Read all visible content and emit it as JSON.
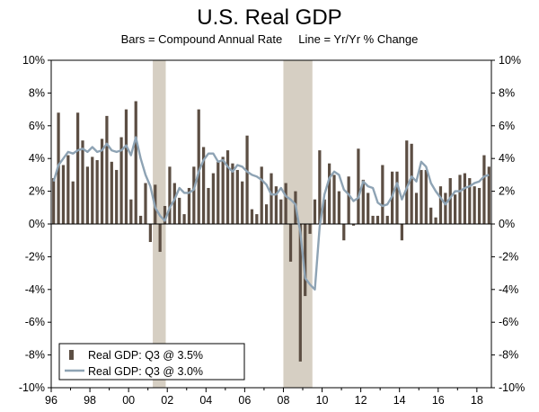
{
  "chart_data": {
    "type": "bar",
    "title": "U.S. Real GDP",
    "subtitle": "Bars = Compound Annual Rate     Line = Yr/Yr % Change",
    "ylim": [
      -10,
      10
    ],
    "yticks": [
      -10,
      -8,
      -6,
      -4,
      -2,
      0,
      2,
      4,
      6,
      8,
      10
    ],
    "ytick_suffix": "%",
    "x_range": [
      1996,
      2018.75
    ],
    "xtick_years": [
      1996,
      1998,
      2000,
      2002,
      2004,
      2006,
      2008,
      2010,
      2012,
      2014,
      2016,
      2018
    ],
    "xtick_labels": [
      "96",
      "98",
      "00",
      "02",
      "04",
      "06",
      "08",
      "10",
      "12",
      "14",
      "16",
      "18"
    ],
    "recessions": [
      [
        2001.25,
        2001.92
      ],
      [
        2008.0,
        2009.5
      ]
    ],
    "colors": {
      "bars": "#5c4e43",
      "line": "#8ea3b4",
      "recession": "#d6cfc3",
      "zero_line": "#000000"
    },
    "legend": [
      {
        "kind": "bar",
        "label": "Real GDP: Q3 @ 3.5%"
      },
      {
        "kind": "line",
        "label": "Real GDP: Q3 @ 3.0%"
      }
    ],
    "series": [
      {
        "name": "Real GDP: Q3 @ 3.5%",
        "kind": "bar",
        "x": [
          1996.0,
          1996.25,
          1996.5,
          1996.75,
          1997.0,
          1997.25,
          1997.5,
          1997.75,
          1998.0,
          1998.25,
          1998.5,
          1998.75,
          1999.0,
          1999.25,
          1999.5,
          1999.75,
          2000.0,
          2000.25,
          2000.5,
          2000.75,
          2001.0,
          2001.25,
          2001.5,
          2001.75,
          2002.0,
          2002.25,
          2002.5,
          2002.75,
          2003.0,
          2003.25,
          2003.5,
          2003.75,
          2004.0,
          2004.25,
          2004.5,
          2004.75,
          2005.0,
          2005.25,
          2005.5,
          2005.75,
          2006.0,
          2006.25,
          2006.5,
          2006.75,
          2007.0,
          2007.25,
          2007.5,
          2007.75,
          2008.0,
          2008.25,
          2008.5,
          2008.75,
          2009.0,
          2009.25,
          2009.5,
          2009.75,
          2010.0,
          2010.25,
          2010.5,
          2010.75,
          2011.0,
          2011.25,
          2011.5,
          2011.75,
          2012.0,
          2012.25,
          2012.5,
          2012.75,
          2013.0,
          2013.25,
          2013.5,
          2013.75,
          2014.0,
          2014.25,
          2014.5,
          2014.75,
          2015.0,
          2015.25,
          2015.5,
          2015.75,
          2016.0,
          2016.25,
          2016.5,
          2016.75,
          2017.0,
          2017.25,
          2017.5,
          2017.75,
          2018.0,
          2018.25,
          2018.5
        ],
        "values": [
          2.8,
          6.8,
          3.6,
          4.2,
          2.6,
          6.8,
          5.1,
          3.5,
          4.1,
          3.9,
          5.2,
          6.6,
          3.8,
          3.3,
          5.3,
          7.0,
          1.5,
          7.5,
          0.5,
          2.5,
          -1.1,
          2.4,
          -1.7,
          1.1,
          3.5,
          2.5,
          1.6,
          0.6,
          2.2,
          3.5,
          7.0,
          4.7,
          2.2,
          3.1,
          3.8,
          4.1,
          4.5,
          3.7,
          3.3,
          2.6,
          5.4,
          0.9,
          0.6,
          3.5,
          1.2,
          3.1,
          2.3,
          1.5,
          2.5,
          -2.3,
          2.0,
          -8.4,
          -4.4,
          -0.6,
          1.5,
          4.5,
          1.5,
          3.7,
          3.0,
          2.0,
          -1.0,
          2.9,
          -0.1,
          4.6,
          2.7,
          1.9,
          0.5,
          0.5,
          3.6,
          0.5,
          3.2,
          3.2,
          -1.0,
          5.1,
          4.9,
          1.9,
          3.3,
          3.3,
          1.0,
          0.4,
          2.3,
          1.9,
          2.8,
          1.8,
          3.0,
          3.1,
          2.8,
          2.3,
          2.2,
          4.2,
          3.5
        ]
      },
      {
        "name": "Real GDP: Q3 @ 3.0%",
        "kind": "line",
        "x": [
          1996.0,
          1996.25,
          1996.5,
          1996.75,
          1997.0,
          1997.25,
          1997.5,
          1997.75,
          1998.0,
          1998.25,
          1998.5,
          1998.75,
          1999.0,
          1999.25,
          1999.5,
          1999.75,
          2000.0,
          2000.25,
          2000.5,
          2000.75,
          2001.0,
          2001.25,
          2001.5,
          2001.75,
          2002.0,
          2002.25,
          2002.5,
          2002.75,
          2003.0,
          2003.25,
          2003.5,
          2003.75,
          2004.0,
          2004.25,
          2004.5,
          2004.75,
          2005.0,
          2005.25,
          2005.5,
          2005.75,
          2006.0,
          2006.25,
          2006.5,
          2006.75,
          2007.0,
          2007.25,
          2007.5,
          2007.75,
          2008.0,
          2008.25,
          2008.5,
          2008.75,
          2009.0,
          2009.25,
          2009.5,
          2009.75,
          2010.0,
          2010.25,
          2010.5,
          2010.75,
          2011.0,
          2011.25,
          2011.5,
          2011.75,
          2012.0,
          2012.25,
          2012.5,
          2012.75,
          2013.0,
          2013.25,
          2013.5,
          2013.75,
          2014.0,
          2014.25,
          2014.5,
          2014.75,
          2015.0,
          2015.25,
          2015.5,
          2015.75,
          2016.0,
          2016.25,
          2016.5,
          2016.75,
          2017.0,
          2017.25,
          2017.5,
          2017.75,
          2018.0,
          2018.25,
          2018.5
        ],
        "values": [
          2.6,
          3.6,
          4.0,
          4.4,
          4.3,
          4.5,
          4.6,
          4.4,
          4.7,
          4.4,
          4.5,
          4.9,
          4.5,
          4.4,
          4.5,
          4.8,
          4.2,
          5.3,
          4.0,
          3.0,
          2.3,
          1.0,
          0.5,
          0.2,
          1.0,
          1.5,
          2.2,
          1.9,
          1.9,
          2.1,
          3.2,
          3.9,
          4.3,
          4.3,
          3.8,
          3.9,
          3.5,
          3.2,
          3.6,
          3.5,
          3.2,
          3.0,
          2.9,
          2.7,
          2.4,
          1.8,
          1.8,
          2.2,
          1.7,
          1.5,
          1.2,
          -0.5,
          -3.3,
          -3.7,
          -4.0,
          -0.2,
          1.8,
          2.8,
          3.2,
          3.0,
          2.1,
          1.8,
          1.4,
          1.6,
          2.6,
          2.3,
          2.2,
          1.3,
          1.1,
          1.2,
          1.7,
          2.5,
          1.5,
          2.2,
          2.9,
          2.6,
          3.8,
          3.5,
          2.5,
          2.0,
          1.6,
          1.2,
          1.6,
          2.0,
          2.0,
          2.2,
          2.3,
          2.5,
          2.6,
          2.9,
          3.0
        ]
      }
    ]
  }
}
